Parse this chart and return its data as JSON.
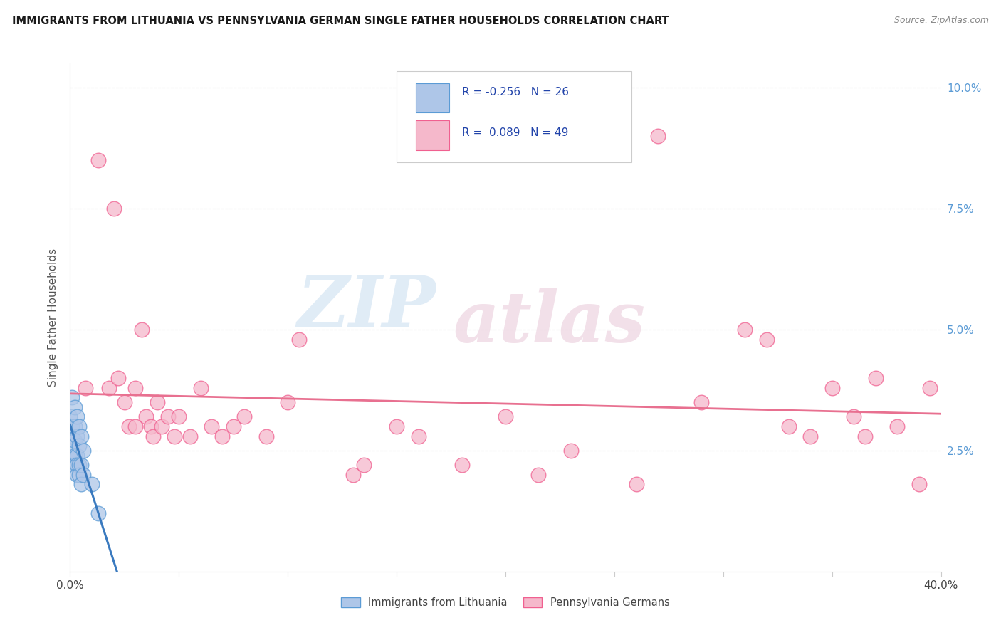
{
  "title": "IMMIGRANTS FROM LITHUANIA VS PENNSYLVANIA GERMAN SINGLE FATHER HOUSEHOLDS CORRELATION CHART",
  "source": "Source: ZipAtlas.com",
  "ylabel": "Single Father Households",
  "legend_label1": "Immigrants from Lithuania",
  "legend_label2": "Pennsylvania Germans",
  "r1": "-0.256",
  "n1": "26",
  "r2": "0.089",
  "n2": "49",
  "blue_fill": "#aec6e8",
  "pink_fill": "#f5b8cb",
  "blue_edge": "#5b9bd5",
  "pink_edge": "#f06090",
  "blue_line_color": "#3a7abf",
  "blue_dash_color": "#aac8e8",
  "pink_line_color": "#e87090",
  "ylabel_right_ticks": [
    "2.5%",
    "5.0%",
    "7.5%",
    "10.0%"
  ],
  "ylabel_right_vals": [
    0.025,
    0.05,
    0.075,
    0.1
  ],
  "blue_scatter": [
    [
      0.0,
      0.032
    ],
    [
      0.001,
      0.036
    ],
    [
      0.001,
      0.03
    ],
    [
      0.001,
      0.028
    ],
    [
      0.001,
      0.025
    ],
    [
      0.002,
      0.034
    ],
    [
      0.002,
      0.03
    ],
    [
      0.002,
      0.027
    ],
    [
      0.002,
      0.024
    ],
    [
      0.002,
      0.022
    ],
    [
      0.003,
      0.032
    ],
    [
      0.003,
      0.028
    ],
    [
      0.003,
      0.024
    ],
    [
      0.003,
      0.022
    ],
    [
      0.003,
      0.02
    ],
    [
      0.004,
      0.03
    ],
    [
      0.004,
      0.026
    ],
    [
      0.004,
      0.022
    ],
    [
      0.004,
      0.02
    ],
    [
      0.005,
      0.028
    ],
    [
      0.005,
      0.022
    ],
    [
      0.005,
      0.018
    ],
    [
      0.006,
      0.025
    ],
    [
      0.006,
      0.02
    ],
    [
      0.01,
      0.018
    ],
    [
      0.013,
      0.012
    ]
  ],
  "pink_scatter": [
    [
      0.007,
      0.038
    ],
    [
      0.013,
      0.085
    ],
    [
      0.018,
      0.038
    ],
    [
      0.02,
      0.075
    ],
    [
      0.022,
      0.04
    ],
    [
      0.025,
      0.035
    ],
    [
      0.027,
      0.03
    ],
    [
      0.03,
      0.038
    ],
    [
      0.03,
      0.03
    ],
    [
      0.033,
      0.05
    ],
    [
      0.035,
      0.032
    ],
    [
      0.037,
      0.03
    ],
    [
      0.038,
      0.028
    ],
    [
      0.04,
      0.035
    ],
    [
      0.042,
      0.03
    ],
    [
      0.045,
      0.032
    ],
    [
      0.048,
      0.028
    ],
    [
      0.05,
      0.032
    ],
    [
      0.055,
      0.028
    ],
    [
      0.06,
      0.038
    ],
    [
      0.065,
      0.03
    ],
    [
      0.07,
      0.028
    ],
    [
      0.075,
      0.03
    ],
    [
      0.08,
      0.032
    ],
    [
      0.09,
      0.028
    ],
    [
      0.1,
      0.035
    ],
    [
      0.105,
      0.048
    ],
    [
      0.13,
      0.02
    ],
    [
      0.135,
      0.022
    ],
    [
      0.15,
      0.03
    ],
    [
      0.16,
      0.028
    ],
    [
      0.18,
      0.022
    ],
    [
      0.2,
      0.032
    ],
    [
      0.215,
      0.02
    ],
    [
      0.23,
      0.025
    ],
    [
      0.26,
      0.018
    ],
    [
      0.27,
      0.09
    ],
    [
      0.29,
      0.035
    ],
    [
      0.31,
      0.05
    ],
    [
      0.32,
      0.048
    ],
    [
      0.33,
      0.03
    ],
    [
      0.34,
      0.028
    ],
    [
      0.35,
      0.038
    ],
    [
      0.36,
      0.032
    ],
    [
      0.365,
      0.028
    ],
    [
      0.37,
      0.04
    ],
    [
      0.38,
      0.03
    ],
    [
      0.39,
      0.018
    ],
    [
      0.395,
      0.038
    ]
  ],
  "xlim": [
    0.0,
    0.4
  ],
  "ylim": [
    0.0,
    0.105
  ],
  "watermark_zip": "ZIP",
  "watermark_atlas": "atlas",
  "background_color": "#ffffff",
  "grid_color": "#c8c8c8"
}
